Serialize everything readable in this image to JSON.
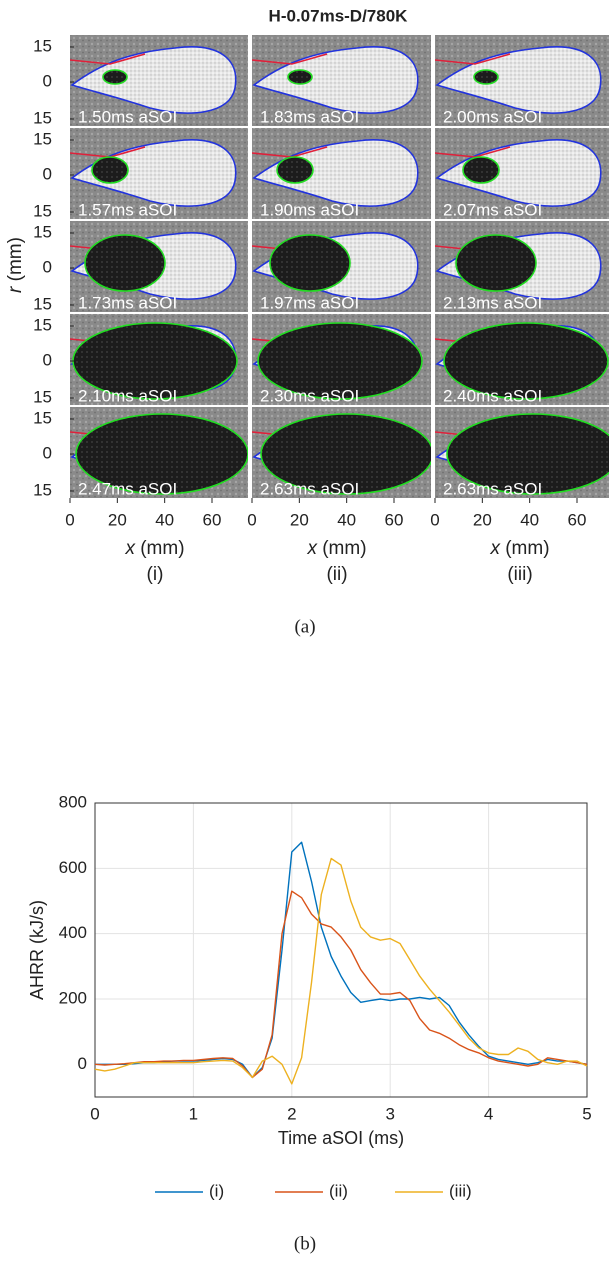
{
  "panel_a": {
    "title": "H-0.07ms-D/780K",
    "ylabel_var": "r",
    "ylabel_unit": "(mm)",
    "xlabel_var": "x",
    "xlabel_unit": "(mm)",
    "rticks": [
      15,
      0,
      15
    ],
    "xticks": [
      0,
      20,
      40,
      60
    ],
    "columns": [
      {
        "label": "(i)",
        "frames": [
          "1.50ms aSOI",
          "1.57ms aSOI",
          "1.73ms aSOI",
          "2.10ms aSOI",
          "2.47ms aSOI"
        ]
      },
      {
        "label": "(ii)",
        "frames": [
          "1.83ms aSOI",
          "1.90ms aSOI",
          "1.97ms aSOI",
          "2.30ms aSOI",
          "2.63ms aSOI"
        ]
      },
      {
        "label": "(iii)",
        "frames": [
          "2.00ms aSOI",
          "2.07ms aSOI",
          "2.13ms aSOI",
          "2.40ms aSOI",
          "2.63ms aSOI"
        ]
      }
    ],
    "caption": "(a)"
  },
  "chart_data": {
    "type": "line",
    "xlabel": "Time aSOI (ms)",
    "ylabel": "AHRR (kJ/s)",
    "x": [
      0,
      0.1,
      0.2,
      0.3,
      0.4,
      0.5,
      0.6,
      0.7,
      0.8,
      0.9,
      1,
      1.1,
      1.2,
      1.3,
      1.4,
      1.5,
      1.6,
      1.7,
      1.8,
      1.9,
      2,
      2.1,
      2.2,
      2.3,
      2.4,
      2.5,
      2.6,
      2.7,
      2.8,
      2.9,
      3,
      3.1,
      3.2,
      3.3,
      3.4,
      3.5,
      3.6,
      3.7,
      3.8,
      3.9,
      4,
      4.1,
      4.2,
      4.3,
      4.4,
      4.5,
      4.6,
      4.7,
      4.8,
      4.9,
      5
    ],
    "series": [
      {
        "name": "(i)",
        "color": "#0072BD",
        "values": [
          0,
          0,
          0,
          0,
          2,
          5,
          5,
          8,
          10,
          10,
          10,
          12,
          15,
          18,
          15,
          0,
          -40,
          -10,
          80,
          350,
          650,
          680,
          560,
          420,
          330,
          270,
          220,
          190,
          195,
          200,
          195,
          200,
          200,
          205,
          200,
          205,
          180,
          130,
          90,
          55,
          25,
          15,
          10,
          5,
          0,
          5,
          15,
          10,
          10,
          5,
          0
        ]
      },
      {
        "name": "(ii)",
        "color": "#D95319",
        "values": [
          0,
          -2,
          0,
          2,
          5,
          8,
          8,
          10,
          10,
          12,
          12,
          15,
          18,
          20,
          18,
          -5,
          -40,
          -15,
          90,
          400,
          530,
          510,
          460,
          430,
          420,
          390,
          350,
          290,
          250,
          215,
          215,
          220,
          195,
          140,
          105,
          95,
          80,
          60,
          45,
          35,
          20,
          10,
          5,
          0,
          -5,
          0,
          20,
          15,
          10,
          5,
          0
        ]
      },
      {
        "name": "(iii)",
        "color": "#EDB120",
        "values": [
          -15,
          -20,
          -15,
          -5,
          5,
          5,
          5,
          5,
          5,
          5,
          5,
          8,
          10,
          12,
          10,
          -10,
          -40,
          10,
          25,
          0,
          -60,
          20,
          250,
          520,
          630,
          610,
          500,
          420,
          390,
          380,
          385,
          370,
          320,
          270,
          230,
          195,
          160,
          120,
          80,
          50,
          35,
          30,
          30,
          50,
          40,
          15,
          5,
          0,
          10,
          10,
          -5
        ]
      }
    ],
    "xlim": [
      0,
      5
    ],
    "xticks": [
      0,
      1,
      2,
      3,
      4,
      5
    ],
    "ylim": [
      -100,
      800
    ],
    "yticks": [
      0,
      200,
      400,
      600,
      800
    ],
    "grid": true,
    "legend": "below"
  },
  "caption_b": "(b)"
}
